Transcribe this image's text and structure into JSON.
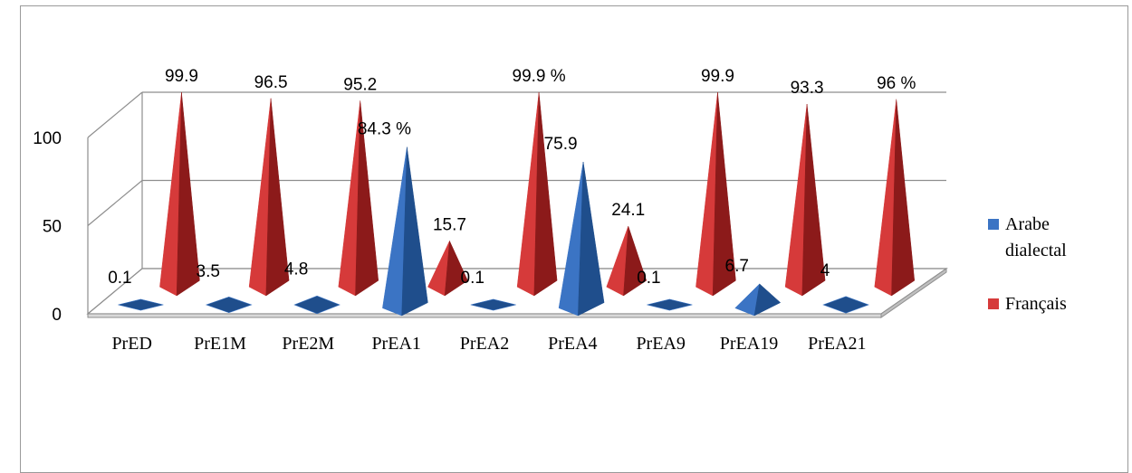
{
  "chart_data": {
    "type": "bar",
    "style": "3d-pyramid",
    "categories": [
      "PrED",
      "PrE1M",
      "PrE2M",
      "PrEA1",
      "PrEA2",
      "PrEA4",
      "PrEA9",
      "PrEA19",
      "PrEA21"
    ],
    "series": [
      {
        "name": "Arabe dialectal",
        "values": [
          0.1,
          3.5,
          4.8,
          84.3,
          0.1,
          75.9,
          0.1,
          6.7,
          4
        ],
        "labels": [
          "0.1",
          "3.5",
          "4.8",
          "84.3 %",
          "0.1",
          "75.9",
          "0.1",
          "6.7",
          "4"
        ],
        "color": "#3b74c4",
        "dark_color": "#1f4e8c"
      },
      {
        "name": "Français",
        "values": [
          99.9,
          96.5,
          95.2,
          15.7,
          99.9,
          24.1,
          99.9,
          93.3,
          96
        ],
        "labels": [
          "99.9",
          "96.5",
          "95.2",
          "15.7",
          "99.9 %",
          "24.1",
          "99.9",
          "93.3",
          "96 %"
        ],
        "color": "#d63a3a",
        "dark_color": "#8c1a1a"
      }
    ],
    "yticks": [
      "0",
      "50",
      "100"
    ],
    "ylim": [
      0,
      100
    ],
    "grid": true,
    "legend_position": "right",
    "legend": {
      "item1_line1": "Arabe",
      "item1_line2": "dialectal",
      "item2": "Français"
    }
  }
}
